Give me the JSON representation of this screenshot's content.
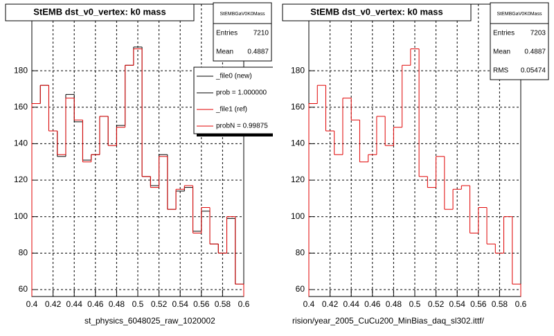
{
  "chart_data": [
    {
      "type": "histogram",
      "title": "StEMB dst_v0_vertex: k0 mass",
      "x_label": "st_physics_6048025_raw_1020002",
      "bins": [
        0.4,
        0.408,
        0.416,
        0.424,
        0.432,
        0.44,
        0.448,
        0.456,
        0.464,
        0.472,
        0.48,
        0.488,
        0.496,
        0.504,
        0.512,
        0.52,
        0.528,
        0.536,
        0.544,
        0.552,
        0.56,
        0.568,
        0.576,
        0.584,
        0.592,
        0.6
      ],
      "series": [
        {
          "name": "_file0 (new)",
          "color": "#000000",
          "values": [
            162,
            172,
            147,
            133,
            167,
            152,
            131,
            134,
            155,
            139,
            150,
            183,
            193,
            122,
            117,
            134,
            104,
            114,
            116,
            92,
            103,
            85,
            80,
            99,
            63
          ]
        },
        {
          "name": "_file1 (ref)",
          "color": "#e00000",
          "values": [
            162,
            172,
            147,
            134,
            165,
            153,
            130,
            134,
            155,
            139,
            149,
            183,
            192,
            122,
            116,
            133,
            104,
            115,
            117,
            91,
            105,
            85,
            80,
            100,
            63
          ]
        }
      ],
      "legend_notes": [
        "prob = 1.000000",
        "probN = 0.99875"
      ],
      "stats": {
        "title": "StEMBGaV0K0Mass",
        "rows": [
          [
            "Entries",
            7210
          ],
          [
            "Mean",
            0.4887
          ]
        ]
      },
      "xlim": [
        0.4,
        0.6
      ],
      "ylim": [
        56.2,
        203.6
      ],
      "xticks": [
        0.4,
        0.42,
        0.44,
        0.46,
        0.48,
        0.5,
        0.52,
        0.54,
        0.56,
        0.58,
        0.6
      ],
      "yticks": [
        60,
        80,
        100,
        120,
        140,
        160,
        180
      ],
      "grid": true
    },
    {
      "type": "histogram",
      "title": "StEMB dst_v0_vertex: k0 mass",
      "x_label": "rision/year_2005_CuCu200_MinBias_daq_sl302.ittf/",
      "bins": [
        0.4,
        0.408,
        0.416,
        0.424,
        0.432,
        0.44,
        0.448,
        0.456,
        0.464,
        0.472,
        0.48,
        0.488,
        0.496,
        0.504,
        0.512,
        0.52,
        0.528,
        0.536,
        0.544,
        0.552,
        0.56,
        0.568,
        0.576,
        0.584,
        0.592,
        0.6
      ],
      "series": [
        {
          "color": "#e00000",
          "values": [
            162,
            172,
            147,
            134,
            165,
            153,
            130,
            134,
            155,
            139,
            149,
            183,
            192,
            122,
            116,
            133,
            104,
            115,
            117,
            91,
            105,
            85,
            80,
            100,
            63
          ]
        }
      ],
      "stats": {
        "title": "StEMBGaV0K0Mass",
        "rows": [
          [
            "Entries",
            7203
          ],
          [
            "Mean",
            0.4887
          ],
          [
            "RMS",
            0.05474
          ]
        ]
      },
      "xlim": [
        0.4,
        0.6
      ],
      "ylim": [
        56.2,
        203.6
      ],
      "xticks": [
        0.4,
        0.42,
        0.44,
        0.46,
        0.48,
        0.5,
        0.52,
        0.54,
        0.56,
        0.58,
        0.6
      ],
      "yticks": [
        60,
        80,
        100,
        120,
        140,
        160,
        180
      ],
      "grid": true
    }
  ]
}
